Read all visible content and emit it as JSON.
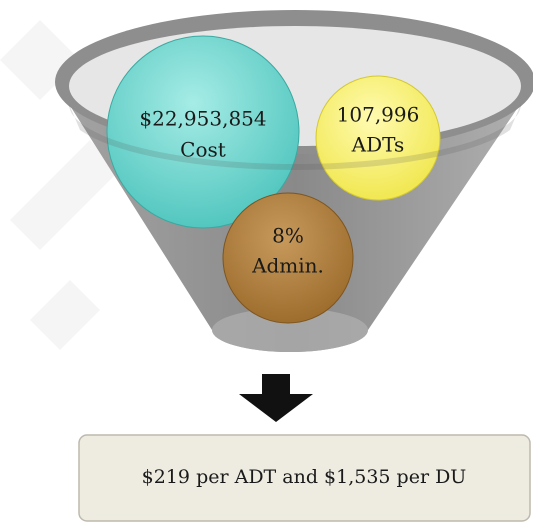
{
  "funnel": {
    "items": [
      {
        "value": "$22,953,854",
        "label": "Cost"
      },
      {
        "value": "107,996",
        "label": "ADTs"
      },
      {
        "value": "8%",
        "label": "Admin."
      }
    ]
  },
  "result": "$219 per ADT and $1,535 per DU"
}
